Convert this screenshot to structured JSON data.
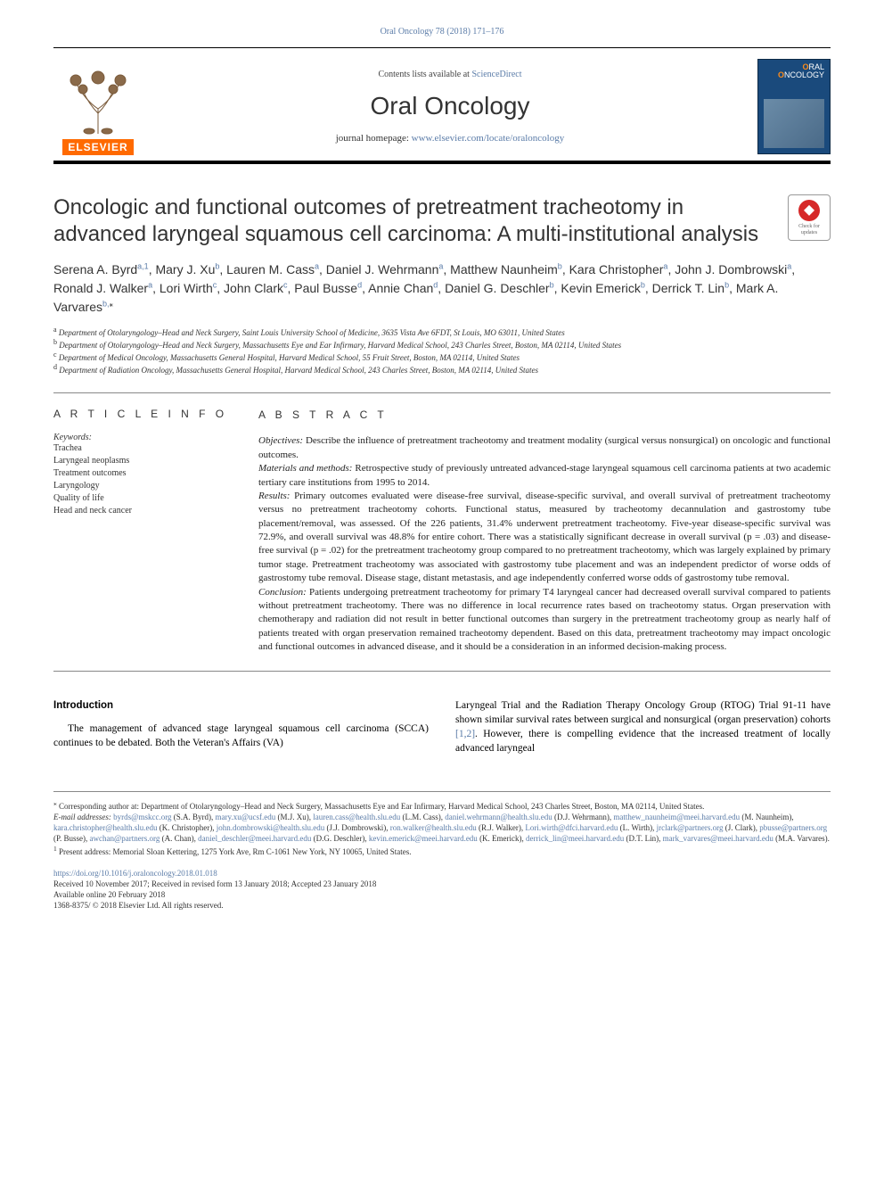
{
  "top_citation": "Oral Oncology 78 (2018) 171–176",
  "masthead": {
    "contents_prefix": "Contents lists available at ",
    "contents_link": "ScienceDirect",
    "journal": "Oral Oncology",
    "homepage_prefix": "journal homepage: ",
    "homepage_url": "www.elsevier.com/locate/oraloncology",
    "elsevier": "ELSEVIER",
    "cover_line1": "RAL",
    "cover_line2": "NCOLOGY"
  },
  "title": "Oncologic and functional outcomes of pretreatment tracheotomy in advanced laryngeal squamous cell carcinoma: A multi-institutional analysis",
  "badge_text": "Check for updates",
  "authors_html": "Serena A. Byrd<sup>a,1</sup>, Mary J. Xu<sup>b</sup>, Lauren M. Cass<sup>a</sup>, Daniel J. Wehrmann<sup>a</sup>, Matthew Naunheim<sup>b</sup>, Kara Christopher<sup>a</sup>, John J. Dombrowski<sup>a</sup>, Ronald J. Walker<sup>a</sup>, Lori Wirth<sup>c</sup>, John Clark<sup>c</sup>, Paul Busse<sup>d</sup>, Annie Chan<sup>d</sup>, Daniel G. Deschler<sup>b</sup>, Kevin Emerick<sup>b</sup>, Derrick T. Lin<sup>b</sup>, Mark A. Varvares<sup>b,</sup><sup class=\"black\">⁎</sup>",
  "affiliations": {
    "a": "Department of Otolaryngology–Head and Neck Surgery, Saint Louis University School of Medicine, 3635 Vista Ave 6FDT, St Louis, MO 63011, United States",
    "b": "Department of Otolaryngology–Head and Neck Surgery, Massachusetts Eye and Ear Infirmary, Harvard Medical School, 243 Charles Street, Boston, MA 02114, United States",
    "c": "Department of Medical Oncology, Massachusetts General Hospital, Harvard Medical School, 55 Fruit Street, Boston, MA 02114, United States",
    "d": "Department of Radiation Oncology, Massachusetts General Hospital, Harvard Medical School, 243 Charles Street, Boston, MA 02114, United States"
  },
  "article_info_heading": "A R T I C L E  I N F O",
  "abstract_heading": "A B S T R A C T",
  "keywords_label": "Keywords:",
  "keywords": [
    "Trachea",
    "Laryngeal neoplasms",
    "Treatment outcomes",
    "Laryngology",
    "Quality of life",
    "Head and neck cancer"
  ],
  "abstract": {
    "objectives_label": "Objectives:",
    "objectives": " Describe the influence of pretreatment tracheotomy and treatment modality (surgical versus nonsurgical) on oncologic and functional outcomes.",
    "methods_label": "Materials and methods:",
    "methods": " Retrospective study of previously untreated advanced-stage laryngeal squamous cell carcinoma patients at two academic tertiary care institutions from 1995 to 2014.",
    "results_label": "Results:",
    "results": " Primary outcomes evaluated were disease-free survival, disease-specific survival, and overall survival of pretreatment tracheotomy versus no pretreatment tracheotomy cohorts. Functional status, measured by tracheotomy decannulation and gastrostomy tube placement/removal, was assessed. Of the 226 patients, 31.4% underwent pretreatment tracheotomy. Five-year disease-specific survival was 72.9%, and overall survival was 48.8% for entire cohort. There was a statistically significant decrease in overall survival (p = .03) and disease-free survival (p = .02) for the pretreatment tracheotomy group compared to no pretreatment tracheotomy, which was largely explained by primary tumor stage. Pretreatment tracheotomy was associated with gastrostomy tube placement and was an independent predictor of worse odds of gastrostomy tube removal. Disease stage, distant metastasis, and age independently conferred worse odds of gastrostomy tube removal.",
    "conclusion_label": "Conclusion:",
    "conclusion": " Patients undergoing pretreatment tracheotomy for primary T4 laryngeal cancer had decreased overall survival compared to patients without pretreatment tracheotomy. There was no difference in local recurrence rates based on tracheotomy status. Organ preservation with chemotherapy and radiation did not result in better functional outcomes than surgery in the pretreatment tracheotomy group as nearly half of patients treated with organ preservation remained tracheotomy dependent. Based on this data, pretreatment tracheotomy may impact oncologic and functional outcomes in advanced disease, and it should be a consideration in an informed decision-making process."
  },
  "intro_heading": "Introduction",
  "intro_col1": "The management of advanced stage laryngeal squamous cell carcinoma (SCCA) continues to be debated. Both the Veteran's Affairs (VA)",
  "intro_col2_a": "Laryngeal Trial and the Radiation Therapy Oncology Group (RTOG) Trial 91-11 have shown similar survival rates between surgical and nonsurgical (organ preservation) cohorts ",
  "intro_col2_ref": "[1,2]",
  "intro_col2_b": ". However, there is compelling evidence that the increased treatment of locally advanced laryngeal",
  "footnotes": {
    "corr_marker": "⁎",
    "corr": " Corresponding author at: Department of Otolaryngology–Head and Neck Surgery, Massachusetts Eye and Ear Infirmary, Harvard Medical School, 243 Charles Street, Boston, MA 02114, United States.",
    "email_label": "E-mail addresses:",
    "emails_html": " <a>byrds@mskcc.org</a> (S.A. Byrd), <a>mary.xu@ucsf.edu</a> (M.J. Xu), <a>lauren.cass@health.slu.edu</a> (L.M. Cass), <a>daniel.wehrmann@health.slu.edu</a> (D.J. Wehrmann), <a>matthew_naunheim@meei.harvard.edu</a> (M. Naunheim), <a>kara.christopher@health.slu.edu</a> (K. Christopher), <a>john.dombrowski@health.slu.edu</a> (J.J. Dombrowski), <a>ron.walker@health.slu.edu</a> (R.J. Walker), <a>Lori.wirth@dfci.harvard.edu</a> (L. Wirth), <a>jrclark@partners.org</a> (J. Clark), <a>pbusse@partners.org</a> (P. Busse), <a>awchan@partners.org</a> (A. Chan), <a>daniel_deschler@meei.harvard.edu</a> (D.G. Deschler), <a>kevin.emerick@meei.harvard.edu</a> (K. Emerick), <a>derrick_lin@meei.harvard.edu</a> (D.T. Lin), <a>mark_varvares@meei.harvard.edu</a> (M.A. Varvares).",
    "note1_marker": "1",
    "note1": " Present address: Memorial Sloan Kettering, 1275 York Ave, Rm C-1061 New York, NY 10065, United States."
  },
  "doi": {
    "url": "https://doi.org/10.1016/j.oraloncology.2018.01.018",
    "history": "Received 10 November 2017; Received in revised form 13 January 2018; Accepted 23 January 2018",
    "online": "Available online 20 February 2018",
    "copyright": "1368-8375/ © 2018 Elsevier Ltd. All rights reserved."
  }
}
